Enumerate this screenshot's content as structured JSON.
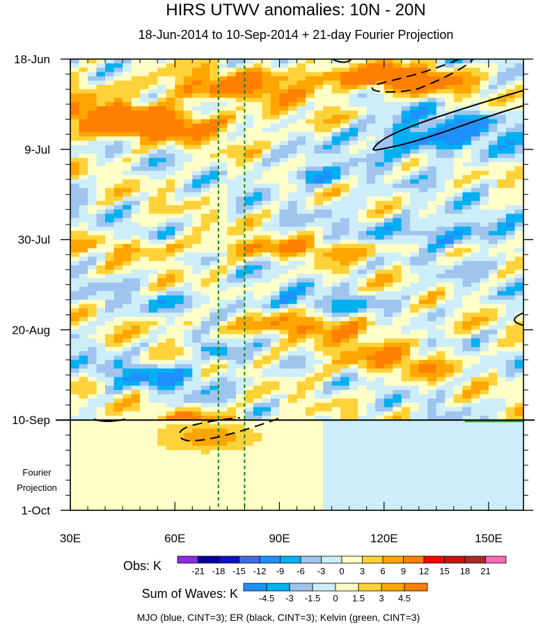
{
  "chart_data": {
    "type": "heatmap",
    "title": "HIRS UTWV anomalies: 10N - 20N",
    "subtitle": "18-Jun-2014 to 10-Sep-2014 + 21-day Fourier Projection",
    "x_ticks": [
      {
        "value": 30,
        "label": "30E"
      },
      {
        "value": 60,
        "label": "60E"
      },
      {
        "value": 90,
        "label": "90E"
      },
      {
        "value": 120,
        "label": "120E"
      },
      {
        "value": 150,
        "label": "150E"
      }
    ],
    "x_range": [
      30,
      160
    ],
    "y_range_days": [
      0,
      105
    ],
    "y_ticks": [
      {
        "day": 0,
        "label": "18-Jun"
      },
      {
        "day": 21,
        "label": "9-Jul"
      },
      {
        "day": 42,
        "label": "30-Jul"
      },
      {
        "day": 63,
        "label": "20-Aug"
      },
      {
        "day": 84,
        "label": "10-Sep"
      },
      {
        "day": 105,
        "label": "1-Oct"
      }
    ],
    "projection_start_day": 84,
    "projection_label": [
      "Fourier",
      "Projection"
    ],
    "reference_longitudes": [
      72.5,
      80
    ],
    "obs_levels": [
      -21,
      -18,
      -15,
      -12,
      -9,
      -6,
      -3,
      0,
      3,
      6,
      9,
      12,
      15,
      18,
      21
    ],
    "obs_colors": [
      "#8a2be2",
      "#0000a0",
      "#1010c8",
      "#4169e1",
      "#1e90ff",
      "#00b0f0",
      "#9fc5ee",
      "#cdeef8",
      "#ffffc8",
      "#ffd23a",
      "#ffa500",
      "#ff7f00",
      "#ff0000",
      "#c81414",
      "#a52a2a",
      "#ff69b4"
    ],
    "obs_label": "Obs: K",
    "wave_levels": [
      -4.5,
      -3,
      -1.5,
      0,
      1.5,
      3,
      4.5
    ],
    "wave_colors": [
      "#1e90ff",
      "#00b0f0",
      "#9fc5ee",
      "#cdeef8",
      "#ffffc8",
      "#ffd23a",
      "#ffa500",
      "#ff7f00"
    ],
    "waves_label": "Sum of Waves: K",
    "contour_legend": "MJO (blue, CINT=3); ER (black, CINT=3); Kelvin (green, CINT=3)"
  },
  "colors": {
    "mjo": "#1e50ff",
    "er": "#000000",
    "kelvin": "#22aa22",
    "ref_lines": "#1a7f1a"
  }
}
